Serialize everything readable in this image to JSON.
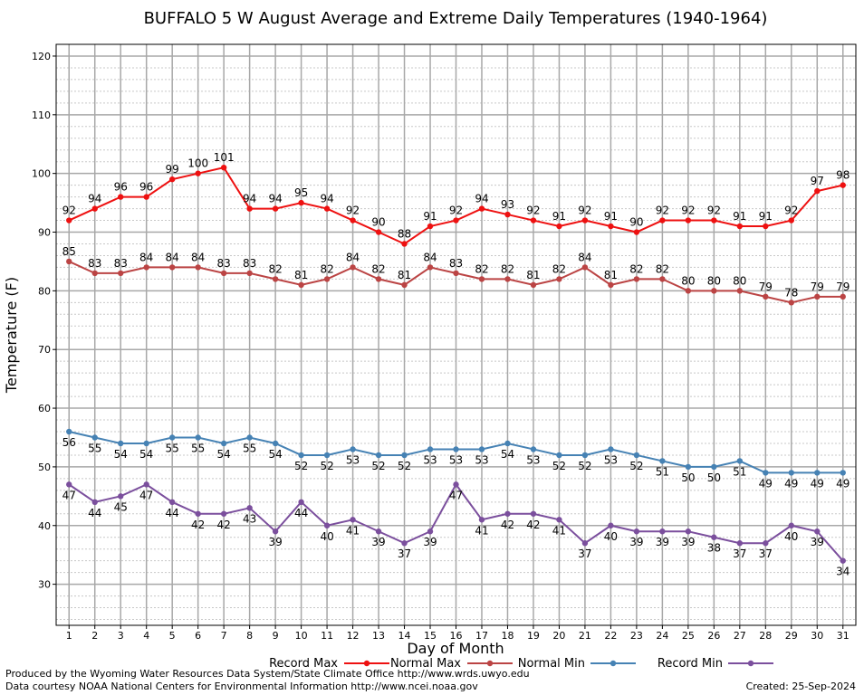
{
  "chart_data": {
    "type": "line",
    "title": "BUFFALO 5 W August Average and Extreme Daily Temperatures (1940-1964)",
    "xlabel": "Day of Month",
    "ylabel": "Temperature (F)",
    "xlim": [
      0.5,
      31.5
    ],
    "ylim": [
      23,
      122
    ],
    "yticks": [
      30,
      40,
      50,
      60,
      70,
      80,
      90,
      100,
      110,
      120
    ],
    "x": [
      1,
      2,
      3,
      4,
      5,
      6,
      7,
      8,
      9,
      10,
      11,
      12,
      13,
      14,
      15,
      16,
      17,
      18,
      19,
      20,
      21,
      22,
      23,
      24,
      25,
      26,
      27,
      28,
      29,
      30,
      31
    ],
    "grid": true,
    "legend_position": "bottom",
    "series": [
      {
        "name": "Record Max",
        "color": "#ee1111",
        "label_pos": "above",
        "values": [
          92,
          94,
          96,
          96,
          99,
          100,
          101,
          94,
          94,
          95,
          94,
          92,
          90,
          88,
          91,
          92,
          94,
          93,
          92,
          91,
          92,
          91,
          90,
          92,
          92,
          92,
          91,
          91,
          92,
          97,
          98
        ]
      },
      {
        "name": "Normal Max",
        "color": "#bb4444",
        "label_pos": "above",
        "values": [
          85,
          83,
          83,
          84,
          84,
          84,
          83,
          83,
          82,
          81,
          82,
          84,
          82,
          81,
          84,
          83,
          82,
          82,
          81,
          82,
          84,
          81,
          82,
          82,
          80,
          80,
          80,
          79,
          78,
          79,
          79
        ]
      },
      {
        "name": "Normal Min",
        "color": "#4682b4",
        "label_pos": "below",
        "values": [
          56,
          55,
          54,
          54,
          55,
          55,
          54,
          55,
          54,
          52,
          52,
          53,
          52,
          52,
          53,
          53,
          53,
          54,
          53,
          52,
          52,
          53,
          52,
          51,
          50,
          50,
          51,
          49,
          49,
          49,
          49
        ]
      },
      {
        "name": "Record Min",
        "color": "#7b4f9d",
        "label_pos": "below",
        "values": [
          47,
          44,
          45,
          47,
          44,
          42,
          42,
          43,
          39,
          44,
          40,
          41,
          39,
          37,
          39,
          47,
          41,
          42,
          42,
          41,
          37,
          40,
          39,
          39,
          39,
          38,
          37,
          37,
          40,
          39,
          34
        ]
      }
    ]
  },
  "footer": {
    "line1": "Produced by the Wyoming Water Resources Data System/State Climate Office http://www.wrds.uwyo.edu",
    "line2": "Data courtesy NOAA National Centers for Environmental Information http://www.ncei.noaa.gov",
    "created": "Created:  25-Sep-2024"
  }
}
